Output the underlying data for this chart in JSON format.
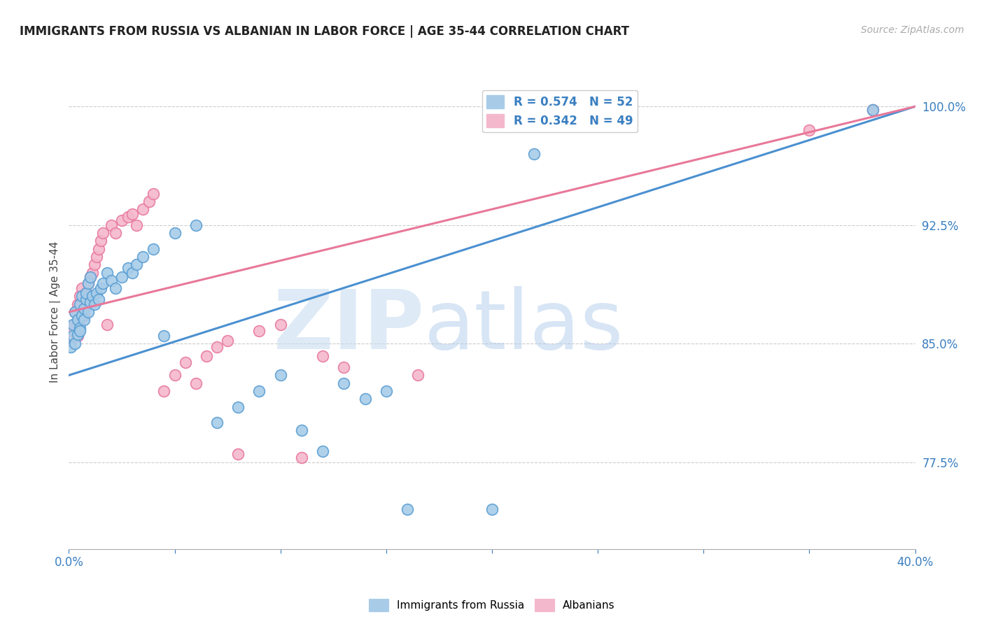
{
  "title": "IMMIGRANTS FROM RUSSIA VS ALBANIAN IN LABOR FORCE | AGE 35-44 CORRELATION CHART",
  "source": "Source: ZipAtlas.com",
  "ylabel": "In Labor Force | Age 35-44",
  "xlim": [
    0.0,
    0.4
  ],
  "ylim": [
    0.72,
    1.02
  ],
  "yticks": [
    0.775,
    0.85,
    0.925,
    1.0
  ],
  "ytick_labels": [
    "77.5%",
    "85.0%",
    "92.5%",
    "100.0%"
  ],
  "xticks": [
    0.0,
    0.05,
    0.1,
    0.15,
    0.2,
    0.25,
    0.3,
    0.35,
    0.4
  ],
  "xtick_labels": [
    "0.0%",
    "",
    "",
    "",
    "",
    "",
    "",
    "",
    "40.0%"
  ],
  "legend1_label": "R = 0.574   N = 52",
  "legend2_label": "R = 0.342   N = 49",
  "color_russia": "#a8cce8",
  "color_albanian": "#f4b8cc",
  "edge_russia": "#5a9fd4",
  "edge_albanian": "#e878a0",
  "line_color_russia": "#4a90d0",
  "line_color_albanian": "#e8789a",
  "russia_x": [
    0.001,
    0.002,
    0.002,
    0.003,
    0.003,
    0.004,
    0.004,
    0.005,
    0.005,
    0.005,
    0.006,
    0.006,
    0.007,
    0.007,
    0.008,
    0.008,
    0.009,
    0.009,
    0.01,
    0.01,
    0.011,
    0.012,
    0.013,
    0.014,
    0.015,
    0.016,
    0.018,
    0.02,
    0.022,
    0.025,
    0.028,
    0.03,
    0.032,
    0.035,
    0.04,
    0.045,
    0.05,
    0.06,
    0.07,
    0.08,
    0.09,
    0.1,
    0.11,
    0.12,
    0.13,
    0.14,
    0.15,
    0.16,
    0.2,
    0.22,
    0.25,
    0.38
  ],
  "russia_y": [
    0.848,
    0.862,
    0.855,
    0.85,
    0.87,
    0.856,
    0.865,
    0.86,
    0.875,
    0.858,
    0.868,
    0.88,
    0.872,
    0.865,
    0.878,
    0.882,
    0.87,
    0.888,
    0.876,
    0.892,
    0.88,
    0.875,
    0.882,
    0.878,
    0.885,
    0.888,
    0.895,
    0.89,
    0.885,
    0.892,
    0.898,
    0.895,
    0.9,
    0.905,
    0.91,
    0.855,
    0.92,
    0.925,
    0.8,
    0.81,
    0.82,
    0.83,
    0.795,
    0.782,
    0.825,
    0.815,
    0.82,
    0.745,
    0.745,
    0.97,
    0.99,
    0.998
  ],
  "albanian_x": [
    0.001,
    0.002,
    0.003,
    0.003,
    0.004,
    0.004,
    0.005,
    0.005,
    0.006,
    0.006,
    0.007,
    0.007,
    0.008,
    0.008,
    0.009,
    0.01,
    0.011,
    0.012,
    0.013,
    0.014,
    0.015,
    0.016,
    0.018,
    0.02,
    0.022,
    0.025,
    0.028,
    0.03,
    0.032,
    0.035,
    0.038,
    0.04,
    0.045,
    0.05,
    0.055,
    0.06,
    0.065,
    0.07,
    0.075,
    0.08,
    0.09,
    0.1,
    0.11,
    0.12,
    0.13,
    0.165,
    0.2,
    0.35,
    0.38
  ],
  "albanian_y": [
    0.852,
    0.858,
    0.862,
    0.87,
    0.855,
    0.875,
    0.865,
    0.88,
    0.87,
    0.885,
    0.872,
    0.868,
    0.878,
    0.882,
    0.888,
    0.892,
    0.895,
    0.9,
    0.905,
    0.91,
    0.915,
    0.92,
    0.862,
    0.925,
    0.92,
    0.928,
    0.93,
    0.932,
    0.925,
    0.935,
    0.94,
    0.945,
    0.82,
    0.83,
    0.838,
    0.825,
    0.842,
    0.848,
    0.852,
    0.78,
    0.858,
    0.862,
    0.778,
    0.842,
    0.835,
    0.83,
    0.999,
    0.985,
    0.998
  ]
}
